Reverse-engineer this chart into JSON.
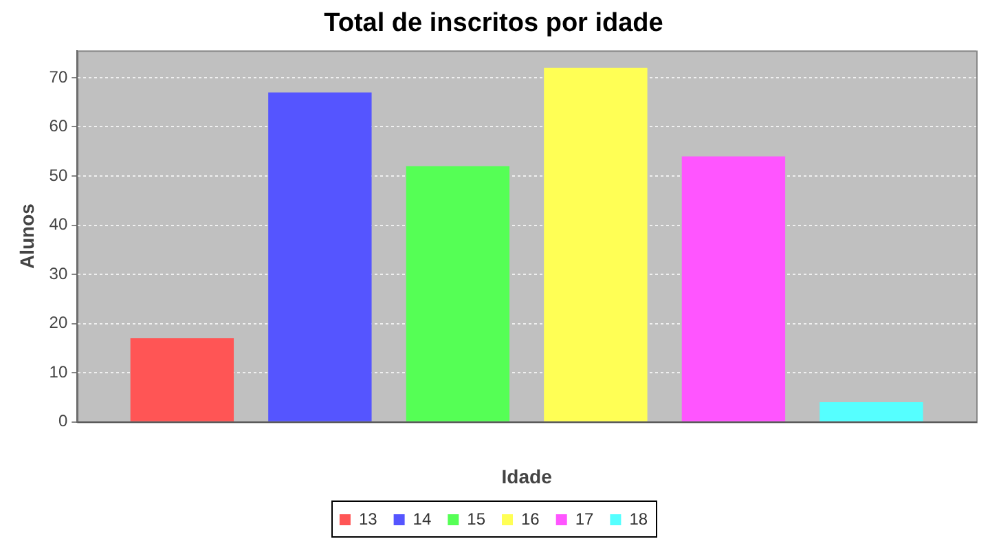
{
  "chart_data": {
    "type": "bar",
    "title": "Total de inscritos por idade",
    "xlabel": "Idade",
    "ylabel": "Alunos",
    "categories": [
      null
    ],
    "series": [
      {
        "name": "13",
        "color": "#ff5555",
        "values": [
          17
        ]
      },
      {
        "name": "14",
        "color": "#5555ff",
        "values": [
          67
        ]
      },
      {
        "name": "15",
        "color": "#55ff55",
        "values": [
          52
        ]
      },
      {
        "name": "16",
        "color": "#ffff55",
        "values": [
          72
        ]
      },
      {
        "name": "17",
        "color": "#ff55ff",
        "values": [
          54
        ]
      },
      {
        "name": "18",
        "color": "#55ffff",
        "values": [
          4
        ]
      }
    ],
    "ylim": [
      0,
      75.5
    ],
    "yticks": [
      0,
      10,
      20,
      30,
      40,
      50,
      60,
      70
    ],
    "grid": "y",
    "legend": "bottom"
  }
}
